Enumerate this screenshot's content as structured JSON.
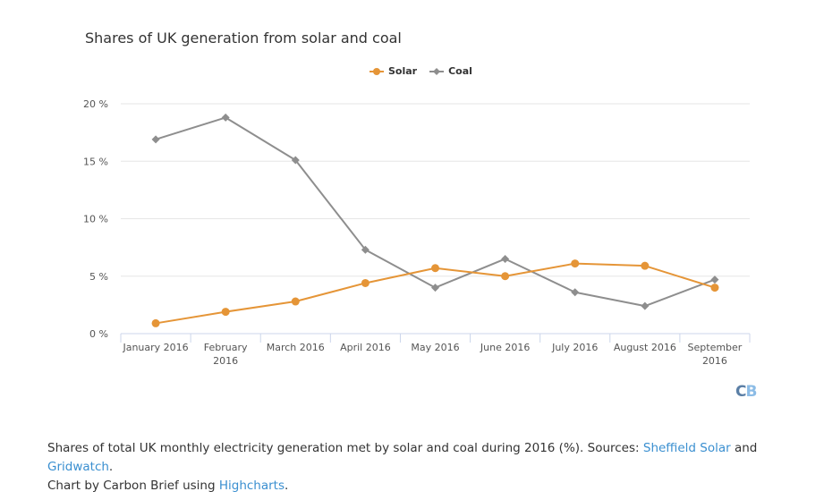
{
  "chart_data": {
    "type": "line",
    "title": "Shares of UK generation from solar and coal",
    "categories": [
      "January 2016",
      "February 2016",
      "March 2016",
      "April 2016",
      "May 2016",
      "June 2016",
      "July 2016",
      "August 2016",
      "September 2016"
    ],
    "category_lines": [
      [
        "January 2016"
      ],
      [
        "February",
        "2016"
      ],
      [
        "March 2016"
      ],
      [
        "April 2016"
      ],
      [
        "May 2016"
      ],
      [
        "June 2016"
      ],
      [
        "July 2016"
      ],
      [
        "August 2016"
      ],
      [
        "September",
        "2016"
      ]
    ],
    "series": [
      {
        "name": "Solar",
        "color": "#e59537",
        "marker": "circle",
        "values": [
          0.9,
          1.9,
          2.8,
          4.4,
          5.7,
          5.0,
          6.1,
          5.9,
          4.0
        ]
      },
      {
        "name": "Coal",
        "color": "#8e8e8e",
        "marker": "diamond",
        "values": [
          16.9,
          18.8,
          15.1,
          7.3,
          4.0,
          6.5,
          3.6,
          2.4,
          4.7
        ]
      }
    ],
    "xlabel": "",
    "ylabel": "",
    "ylim": [
      0,
      20
    ],
    "yticks": [
      0,
      5,
      10,
      15,
      20
    ],
    "ytick_suffix": " %",
    "grid": true,
    "legend": "top-center"
  },
  "logo": {
    "c": "C",
    "b": "B"
  },
  "caption": {
    "text1": "Shares of total UK monthly electricity generation met by solar and coal during 2016 (%). Sources: ",
    "link1": "Sheffield Solar",
    "text2": " and ",
    "link2": "Gridwatch",
    "text3": ".",
    "line2_text": "Chart by Carbon Brief using ",
    "link3": "Highcharts",
    "text4": "."
  }
}
